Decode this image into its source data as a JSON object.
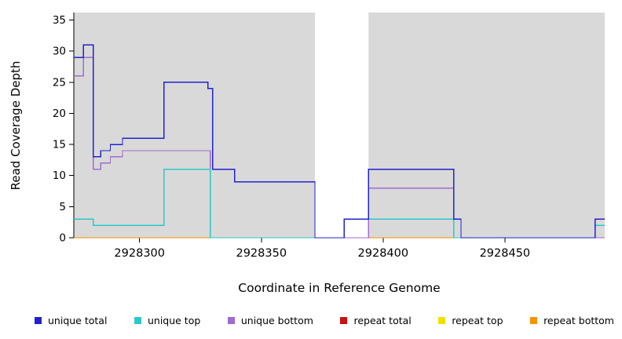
{
  "chart_data": {
    "type": "line",
    "subtype": "step",
    "title": "",
    "xlabel": "Coordinate in Reference Genome",
    "ylabel": "Read Coverage Depth",
    "xlim": [
      2928273,
      2928491
    ],
    "ylim": [
      0,
      36.2
    ],
    "x_ticks": [
      2928300,
      2928350,
      2928400,
      2928450
    ],
    "y_ticks": [
      0,
      5,
      10,
      15,
      20,
      25,
      30,
      35
    ],
    "grid": false,
    "plot_background": "#d9d9d9",
    "page_background": "#ffffff",
    "gap_band": {
      "x_start": 2928372,
      "x_end": 2928394,
      "color": "#ffffff"
    },
    "legend_position": "bottom",
    "series": [
      {
        "name": "unique total",
        "color": "#2222cc",
        "points": [
          [
            2928273,
            29
          ],
          [
            2928277,
            31
          ],
          [
            2928281,
            13
          ],
          [
            2928284,
            14
          ],
          [
            2928288,
            15
          ],
          [
            2928293,
            16
          ],
          [
            2928310,
            25
          ],
          [
            2928328,
            24
          ],
          [
            2928330,
            11
          ],
          [
            2928339,
            9
          ],
          [
            2928372,
            0
          ],
          [
            2928384,
            3
          ],
          [
            2928394,
            11
          ],
          [
            2928429,
            3
          ],
          [
            2928432,
            0
          ],
          [
            2928487,
            3
          ]
        ]
      },
      {
        "name": "unique top",
        "color": "#2cc8c8",
        "points": [
          [
            2928273,
            3
          ],
          [
            2928281,
            2
          ],
          [
            2928310,
            11
          ],
          [
            2928329,
            0
          ],
          [
            2928384,
            3
          ],
          [
            2928429,
            0
          ],
          [
            2928487,
            2
          ]
        ]
      },
      {
        "name": "unique bottom",
        "color": "#a06bd0",
        "points": [
          [
            2928273,
            26
          ],
          [
            2928277,
            29
          ],
          [
            2928281,
            11
          ],
          [
            2928284,
            12
          ],
          [
            2928288,
            13
          ],
          [
            2928293,
            14
          ],
          [
            2928329,
            0
          ],
          [
            2928394,
            8
          ],
          [
            2928429,
            0
          ]
        ]
      },
      {
        "name": "repeat total",
        "color": "#cc1111",
        "points": [
          [
            2928273,
            0
          ]
        ]
      },
      {
        "name": "repeat top",
        "color": "#f0e000",
        "points": [
          [
            2928273,
            0
          ]
        ]
      },
      {
        "name": "repeat bottom",
        "color": "#f59300",
        "points": [
          [
            2928273,
            0
          ]
        ]
      }
    ]
  }
}
